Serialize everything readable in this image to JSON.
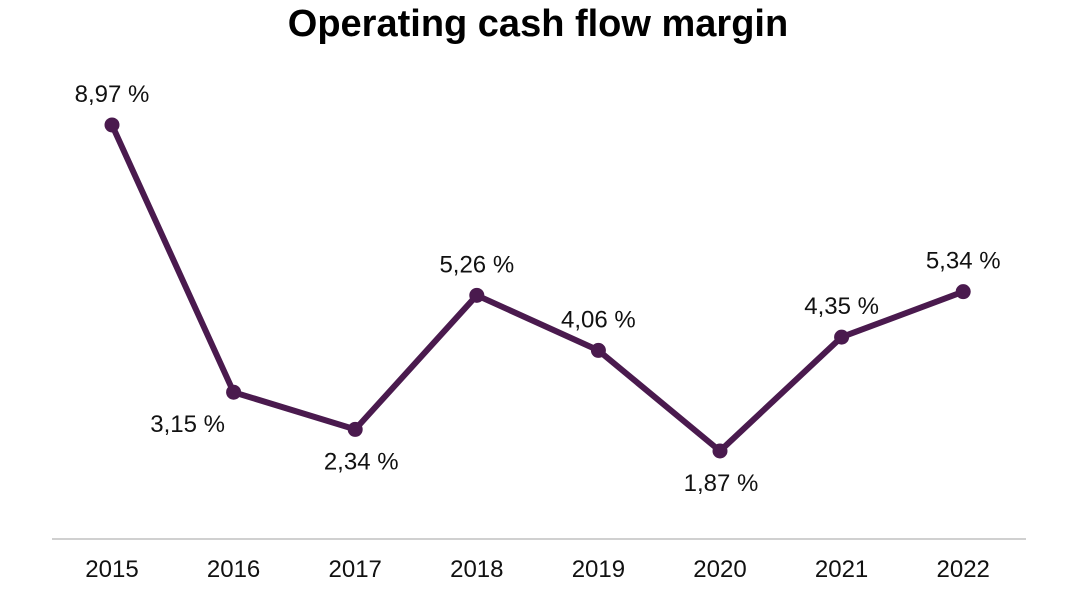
{
  "chart_data": {
    "type": "line",
    "title": "Operating cash flow margin",
    "xlabel": "",
    "ylabel": "",
    "categories": [
      "2015",
      "2016",
      "2017",
      "2018",
      "2019",
      "2020",
      "2021",
      "2022"
    ],
    "series": [
      {
        "values": [
          8.97,
          3.15,
          2.34,
          5.26,
          4.06,
          1.87,
          4.35,
          5.34
        ],
        "labels": [
          "8,97 %",
          "3,15 %",
          "2,34 %",
          "5,26 %",
          "4,06 %",
          "1,87 %",
          "4,35 %",
          "5,34 %"
        ],
        "color": "#4a1a4e"
      }
    ],
    "label_position": [
      "above",
      "below",
      "below",
      "above",
      "above",
      "below",
      "above",
      "above"
    ],
    "grid": false,
    "legend": "none",
    "axis_color": "#d0d0d0"
  }
}
